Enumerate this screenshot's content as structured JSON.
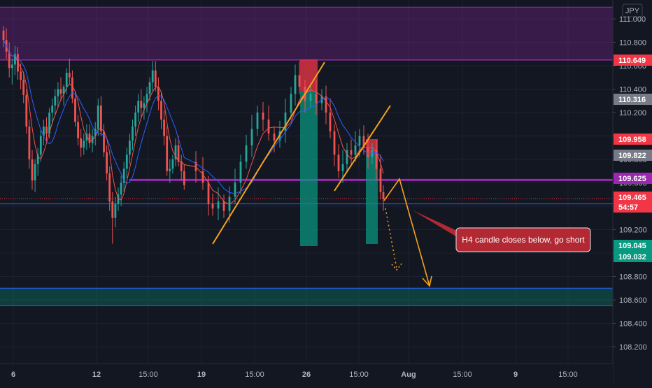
{
  "chart_data": {
    "type": "candlestick",
    "currency_label": "JPY",
    "y_ticks": [
      "111.000",
      "110.800",
      "110.600",
      "110.400",
      "110.200",
      "110.000",
      "109.800",
      "109.600",
      "109.400",
      "109.200",
      "109.000",
      "108.800",
      "108.600",
      "108.400",
      "108.200"
    ],
    "x_ticks": [
      "6",
      "12",
      "15:00",
      "19",
      "15:00",
      "26",
      "15:00",
      "Aug",
      "15:00",
      "9",
      "15:00"
    ],
    "price_tags": [
      {
        "label": "110.649",
        "color": "#f23645"
      },
      {
        "label": "110.316",
        "color": "#787b86"
      },
      {
        "label": "109.958",
        "color": "#f23645"
      },
      {
        "label": "109.822",
        "color": "#787b86"
      },
      {
        "label": "109.625",
        "color": "#9c27b0"
      },
      {
        "label": "109.465",
        "color": "#f23645"
      },
      {
        "label": "54:57",
        "color": "#f23645"
      },
      {
        "label": "109.045",
        "color": "#089981"
      },
      {
        "label": "109.032",
        "color": "#089981"
      }
    ],
    "annotation": "H4 candle closes below, go short",
    "zones": [
      {
        "name": "resistance",
        "from": 110.649,
        "to": 111.1,
        "color": "#9c27b0"
      },
      {
        "name": "support",
        "from": 108.55,
        "to": 108.7,
        "color": "#089981"
      }
    ],
    "levels": [
      109.625,
      109.465,
      109.42
    ],
    "colors": {
      "up": "#26a69a",
      "down": "#ef5350",
      "background": "#131722",
      "ma_fast": "#ef5350",
      "ma_slow": "#2962ff",
      "trendline": "#f7a21b"
    },
    "candles": [
      [
        110.9,
        110.94,
        110.76,
        110.82
      ],
      [
        110.82,
        110.92,
        110.66,
        110.72
      ],
      [
        110.72,
        110.8,
        110.5,
        110.58
      ],
      [
        110.58,
        110.66,
        110.44,
        110.61
      ],
      [
        110.61,
        110.77,
        110.52,
        110.7
      ],
      [
        110.7,
        110.76,
        110.48,
        110.55
      ],
      [
        110.55,
        110.62,
        110.4,
        110.48
      ],
      [
        110.48,
        110.55,
        110.28,
        110.35
      ],
      [
        110.35,
        110.4,
        110.02,
        110.08
      ],
      [
        110.08,
        110.14,
        109.72,
        109.8
      ],
      [
        109.8,
        109.88,
        109.54,
        109.62
      ],
      [
        109.62,
        109.8,
        109.52,
        109.76
      ],
      [
        109.76,
        109.9,
        109.66,
        109.84
      ],
      [
        109.84,
        110.05,
        109.78,
        110.0
      ],
      [
        110.0,
        110.14,
        109.92,
        110.08
      ],
      [
        110.08,
        110.16,
        109.94,
        110.02
      ],
      [
        110.02,
        110.24,
        109.98,
        110.2
      ],
      [
        110.2,
        110.32,
        110.1,
        110.26
      ],
      [
        110.26,
        110.4,
        110.18,
        110.34
      ],
      [
        110.34,
        110.46,
        110.24,
        110.4
      ],
      [
        110.4,
        110.5,
        110.3,
        110.36
      ],
      [
        110.36,
        110.44,
        110.26,
        110.42
      ],
      [
        110.42,
        110.58,
        110.36,
        110.54
      ],
      [
        110.54,
        110.66,
        110.44,
        110.5
      ],
      [
        110.5,
        110.56,
        110.28,
        110.32
      ],
      [
        110.32,
        110.38,
        110.08,
        110.12
      ],
      [
        110.12,
        110.18,
        109.92,
        109.98
      ],
      [
        109.98,
        110.06,
        109.82,
        109.9
      ],
      [
        109.9,
        110.02,
        109.84,
        109.96
      ],
      [
        109.96,
        110.1,
        109.88,
        110.02
      ],
      [
        110.02,
        110.1,
        109.9,
        109.94
      ],
      [
        109.94,
        110.06,
        109.86,
        110.0
      ],
      [
        110.0,
        110.12,
        109.92,
        110.06
      ],
      [
        110.06,
        110.32,
        110.0,
        110.26
      ],
      [
        110.26,
        110.34,
        110.0,
        110.04
      ],
      [
        110.04,
        110.1,
        109.82,
        109.86
      ],
      [
        109.86,
        109.92,
        109.62,
        109.68
      ],
      [
        109.68,
        109.74,
        109.36,
        109.44
      ],
      [
        109.44,
        109.52,
        109.08,
        109.3
      ],
      [
        109.3,
        109.48,
        109.22,
        109.42
      ],
      [
        109.42,
        109.56,
        109.36,
        109.5
      ],
      [
        109.5,
        109.66,
        109.4,
        109.6
      ],
      [
        109.6,
        109.78,
        109.52,
        109.72
      ],
      [
        109.72,
        109.9,
        109.64,
        109.84
      ],
      [
        109.84,
        110.02,
        109.76,
        109.96
      ],
      [
        109.96,
        110.14,
        109.88,
        110.08
      ],
      [
        110.08,
        110.26,
        110.0,
        110.2
      ],
      [
        110.2,
        110.36,
        110.12,
        110.3
      ],
      [
        110.3,
        110.4,
        110.16,
        110.24
      ],
      [
        110.24,
        110.34,
        110.14,
        110.28
      ],
      [
        110.28,
        110.42,
        110.2,
        110.36
      ],
      [
        110.36,
        110.5,
        110.3,
        110.46
      ],
      [
        110.46,
        110.64,
        110.38,
        110.56
      ],
      [
        110.56,
        110.64,
        110.38,
        110.42
      ],
      [
        110.42,
        110.5,
        110.22,
        110.3
      ],
      [
        110.3,
        110.38,
        110.06,
        110.14
      ],
      [
        110.14,
        110.22,
        109.92,
        110.0
      ],
      [
        110.0,
        110.08,
        109.66,
        109.7
      ],
      [
        109.7,
        109.8,
        109.6,
        109.72
      ],
      [
        109.72,
        109.84,
        109.68,
        109.8
      ],
      [
        109.8,
        109.98,
        109.74,
        109.92
      ],
      [
        109.92,
        110.0,
        109.74,
        109.78
      ],
      [
        109.78,
        109.84,
        109.62,
        109.7
      ],
      [
        109.7,
        109.76,
        109.54,
        109.58
      ]
    ]
  }
}
